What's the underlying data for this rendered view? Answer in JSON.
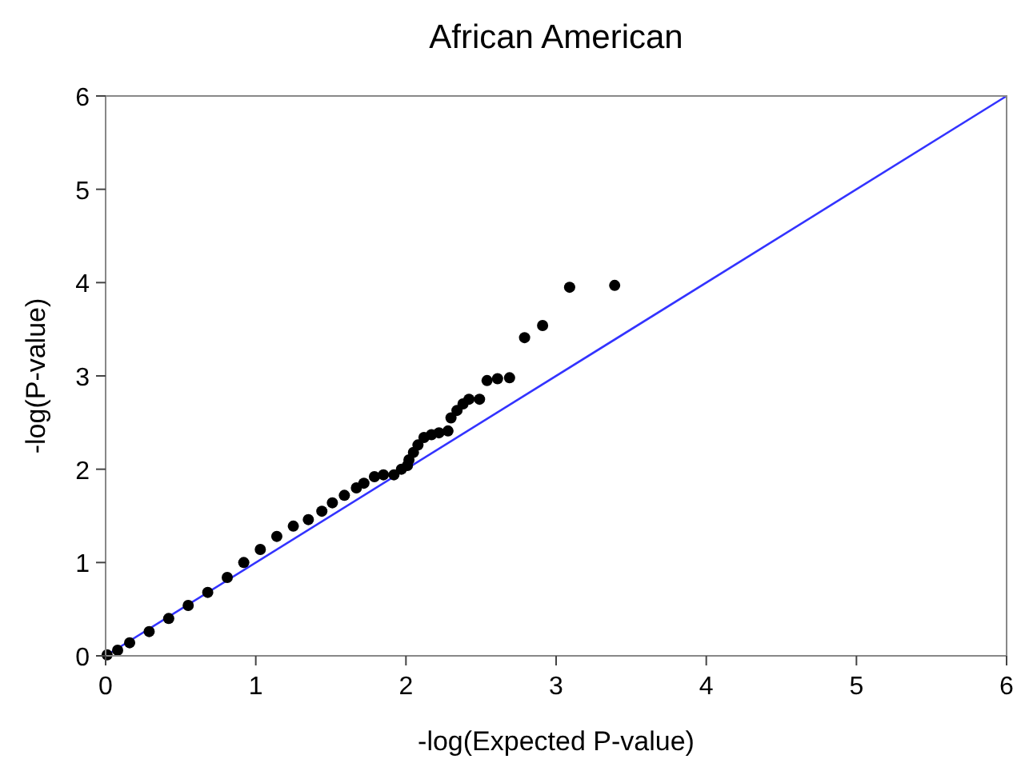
{
  "chart_data": {
    "type": "scatter",
    "title": "African American",
    "xlabel": "-log(Expected P-value)",
    "ylabel": "-log(P-value)",
    "xlim": [
      0,
      6
    ],
    "ylim": [
      0,
      6
    ],
    "xticks": [
      0,
      1,
      2,
      3,
      4,
      5,
      6
    ],
    "yticks": [
      0,
      1,
      2,
      3,
      4,
      5,
      6
    ],
    "grid": false,
    "series": [
      {
        "color": "#000000",
        "marker": "circle",
        "x": [
          0.01,
          0.08,
          0.16,
          0.29,
          0.42,
          0.55,
          0.68,
          0.81,
          0.92,
          1.03,
          1.14,
          1.25,
          1.35,
          1.44,
          1.51,
          1.59,
          1.67,
          1.72,
          1.79,
          1.85,
          1.92,
          1.97,
          2.01,
          2.02,
          2.05,
          2.08,
          2.12,
          2.17,
          2.22,
          2.28,
          2.3,
          2.34,
          2.38,
          2.42,
          2.49,
          2.54,
          2.61,
          2.69,
          2.79,
          2.91,
          3.09,
          3.39
        ],
        "values": [
          0.01,
          0.06,
          0.14,
          0.26,
          0.4,
          0.54,
          0.68,
          0.84,
          1.0,
          1.14,
          1.28,
          1.39,
          1.46,
          1.55,
          1.64,
          1.72,
          1.8,
          1.85,
          1.92,
          1.94,
          1.94,
          2.0,
          2.04,
          2.1,
          2.18,
          2.26,
          2.34,
          2.37,
          2.39,
          2.41,
          2.55,
          2.63,
          2.7,
          2.75,
          2.75,
          2.95,
          2.97,
          2.98,
          3.41,
          3.54,
          3.95,
          3.97
        ]
      },
      {
        "type": "line",
        "color": "#3333ff",
        "x": [
          0,
          6
        ],
        "values": [
          0,
          6
        ]
      }
    ]
  }
}
